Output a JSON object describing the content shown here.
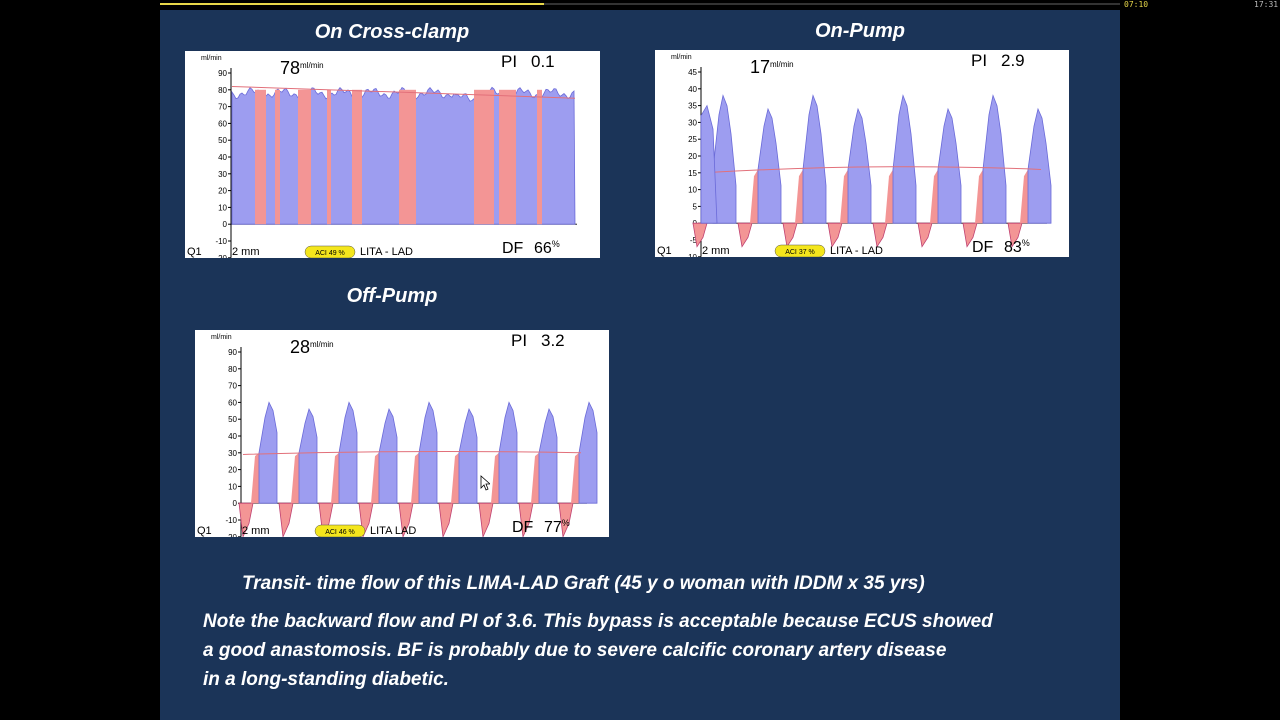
{
  "player": {
    "current_time": "07:10",
    "total_time": "17:31",
    "progress": 0.4
  },
  "slide": {
    "charts": [
      {
        "title": "On Cross-clamp",
        "unit": "ml/min",
        "mean_flow": "78",
        "pi_label": "PI",
        "pi_value": "0.1",
        "df_label": "DF",
        "df_value": "66",
        "df_unit": "%",
        "probe_channel": "Q1",
        "probe_size": "2 mm",
        "aci_label": "ACI 49 %",
        "vessel": "LITA - LAD",
        "y_ticks": [
          "90",
          "80",
          "70",
          "60",
          "50",
          "40",
          "30",
          "20",
          "10",
          "0",
          "-10",
          "-20"
        ]
      },
      {
        "title": "On-Pump",
        "unit": "ml/min",
        "mean_flow": "17",
        "pi_label": "PI",
        "pi_value": "2.9",
        "df_label": "DF",
        "df_value": "83",
        "df_unit": "%",
        "probe_channel": "Q1",
        "probe_size": "2 mm",
        "aci_label": "ACI 37 %",
        "vessel": "LITA - LAD",
        "y_ticks": [
          "45",
          "40",
          "35",
          "30",
          "25",
          "20",
          "15",
          "10",
          "5",
          "0",
          "-5",
          "-10"
        ]
      },
      {
        "title": "Off-Pump",
        "unit": "ml/min",
        "mean_flow": "28",
        "pi_label": "PI",
        "pi_value": "3.2",
        "df_label": "DF",
        "df_value": "77",
        "df_unit": "%",
        "probe_channel": "Q1",
        "probe_size": "2 mm",
        "aci_label": "ACI 46 %",
        "vessel": "LITA LAD",
        "y_ticks": [
          "90",
          "80",
          "70",
          "60",
          "50",
          "40",
          "30",
          "20",
          "10",
          "0",
          "-10",
          "-20"
        ]
      }
    ],
    "caption": {
      "line1": "Transit- time flow of this LIMA-LAD Graft (45 y o woman with IDDM x 35 yrs)",
      "line2": "Note the backward flow and PI of 3.6. This bypass is acceptable  because ECUS showed",
      "line3": "a good anastomosis. BF  is probably due to severe calcific coronary artery disease",
      "line4": "in a long-standing diabetic."
    }
  },
  "colors": {
    "slide_bg": "#1b3458",
    "systolic": "#9d9df0",
    "diastolic_marker": "#f39595",
    "mean_line": "#e2707a",
    "aci_badge": "#f4e61c",
    "progress": "#e8d84a"
  }
}
